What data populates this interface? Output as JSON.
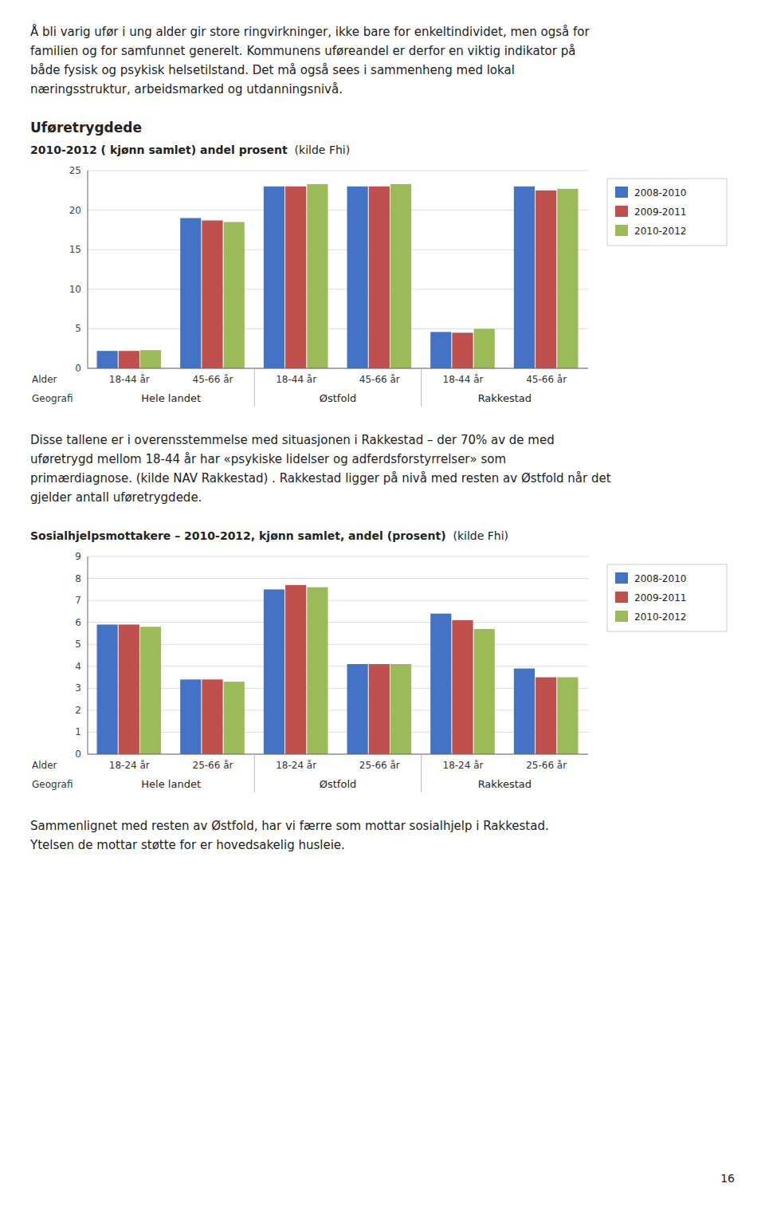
{
  "page": {
    "intro": [
      "Å bli varig ufør i ung alder gir store ringvirkninger, ikke bare for enkeltindividet, men også for",
      "familien og for samfunnet generelt.  Kommunens uføreandel er derfor en viktig indikator på",
      "både fysisk og psykisk helsetilstand.  Det må også sees i sammenheng med lokal",
      "næringsstruktur, arbeidsmarked og utdanningsnivå."
    ],
    "heading": "Uføretrygdede",
    "middle": [
      "Disse tallene er i overensstemmelse med situasjonen i Rakkestad – der 70% av de med",
      "uføretrygd mellom 18-44 år har «psykiske lidelser og adferdsforstyrrelser» som",
      "primærdiagnose. (kilde NAV Rakkestad)  . Rakkestad ligger på nivå med resten av Østfold når det",
      "gjelder antall uføretrygdede."
    ],
    "footer": [
      "Sammenlignet med resten av Østfold, har vi færre som mottar sosialhjelp i Rakkestad.",
      "Ytelsen de mottar støtte for er hovedsakelig husleie."
    ],
    "page_number": "16"
  },
  "chart_data": [
    {
      "type": "bar",
      "title": "2010-2012 ( kjønn samlet) andel prosent",
      "subtitle": "(kilde Fhi)",
      "xlabel": "Alder",
      "group_label": "Geografi",
      "categories": [
        "18-44 år",
        "45-66 år",
        "18-44 år",
        "45-66 år",
        "18-44 år",
        "45-66 år"
      ],
      "category_groups": [
        "Hele landet",
        "Østfold",
        "Rakkestad"
      ],
      "series": [
        {
          "name": "2008-2010",
          "color": "#4472C4",
          "values": [
            2.2,
            19.0,
            23.0,
            23.0,
            4.6,
            23.0
          ]
        },
        {
          "name": "2009-2011",
          "color": "#C0504D",
          "values": [
            2.2,
            18.7,
            23.0,
            23.0,
            4.5,
            22.5
          ]
        },
        {
          "name": "2010-2012",
          "color": "#9BBB59",
          "values": [
            2.3,
            18.5,
            23.3,
            23.3,
            5.0,
            22.7
          ]
        }
      ],
      "ylim": [
        0,
        25
      ],
      "yticks": [
        0,
        5,
        10,
        15,
        20,
        25
      ],
      "grid": true,
      "legend": "right"
    },
    {
      "type": "bar",
      "title": "Sosialhjelpsmottakere – 2010-2012, kjønn samlet, andel (prosent)",
      "subtitle": "(kilde Fhi)",
      "xlabel": "Alder",
      "group_label": "Geografi",
      "categories": [
        "18-24 år",
        "25-66 år",
        "18-24 år",
        "25-66 år",
        "18-24 år",
        "25-66 år"
      ],
      "category_groups": [
        "Hele landet",
        "Østfold",
        "Rakkestad"
      ],
      "series": [
        {
          "name": "2008-2010",
          "color": "#4472C4",
          "values": [
            5.9,
            3.4,
            7.5,
            4.1,
            6.4,
            3.9
          ]
        },
        {
          "name": "2009-2011",
          "color": "#C0504D",
          "values": [
            5.9,
            3.4,
            7.7,
            4.1,
            6.1,
            3.5
          ]
        },
        {
          "name": "2010-2012",
          "color": "#9BBB59",
          "values": [
            5.8,
            3.3,
            7.6,
            4.1,
            5.7,
            3.5
          ]
        }
      ],
      "ylim": [
        0,
        9
      ],
      "yticks": [
        0,
        1,
        2,
        3,
        4,
        5,
        6,
        7,
        8,
        9
      ],
      "grid": true,
      "legend": "right"
    }
  ]
}
